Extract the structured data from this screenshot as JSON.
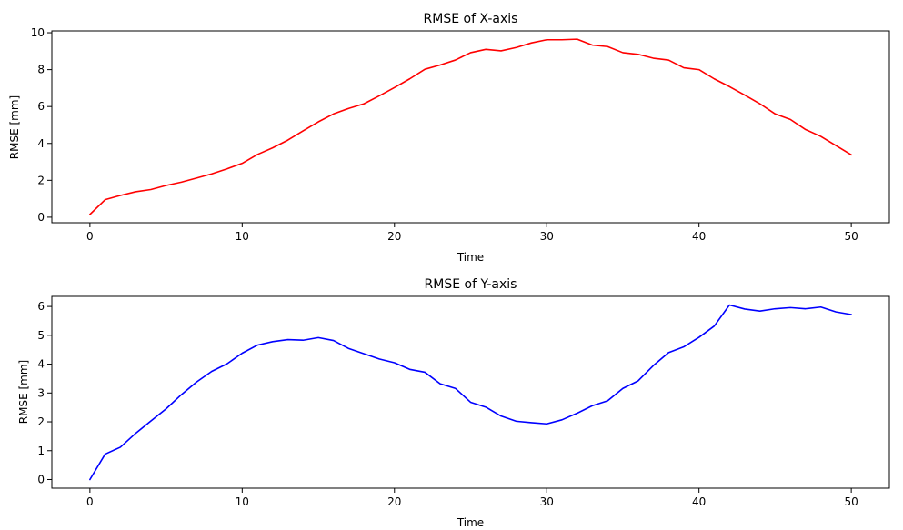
{
  "chart_data": [
    {
      "type": "line",
      "title": "RMSE of X-axis",
      "xlabel": "Time",
      "ylabel": "RMSE [mm]",
      "xlim": [
        -2.5,
        52.5
      ],
      "ylim": [
        -0.3,
        10.1
      ],
      "xticks": [
        0,
        10,
        20,
        30,
        40,
        50
      ],
      "yticks": [
        0,
        2,
        4,
        6,
        8,
        10
      ],
      "grid": false,
      "series": [
        {
          "name": "RMSE X",
          "color": "#ff0000",
          "x": [
            0,
            1,
            2,
            3,
            4,
            5,
            6,
            7,
            8,
            9,
            10,
            11,
            12,
            13,
            14,
            15,
            16,
            17,
            18,
            19,
            20,
            21,
            22,
            23,
            24,
            25,
            26,
            27,
            28,
            29,
            30,
            31,
            32,
            33,
            34,
            35,
            36,
            37,
            38,
            39,
            40,
            41,
            42,
            43,
            44,
            45,
            46,
            47,
            48,
            49,
            50
          ],
          "values": [
            0.15,
            0.95,
            1.18,
            1.38,
            1.5,
            1.72,
            1.9,
            2.12,
            2.35,
            2.62,
            2.92,
            3.4,
            3.76,
            4.18,
            4.68,
            5.17,
            5.6,
            5.9,
            6.15,
            6.58,
            7.03,
            7.5,
            8.02,
            8.25,
            8.52,
            8.92,
            9.1,
            9.02,
            9.2,
            9.45,
            9.62,
            9.62,
            9.65,
            9.33,
            9.25,
            8.92,
            8.83,
            8.62,
            8.52,
            8.1,
            8.0,
            7.5,
            7.08,
            6.62,
            6.15,
            5.6,
            5.3,
            4.75,
            4.38,
            3.88,
            3.38
          ]
        }
      ]
    },
    {
      "type": "line",
      "title": "RMSE of Y-axis",
      "xlabel": "Time",
      "ylabel": "RMSE [mm]",
      "xlim": [
        -2.5,
        52.5
      ],
      "ylim": [
        -0.3,
        6.35
      ],
      "xticks": [
        0,
        10,
        20,
        30,
        40,
        50
      ],
      "yticks": [
        0,
        1,
        2,
        3,
        4,
        5,
        6
      ],
      "grid": false,
      "series": [
        {
          "name": "RMSE Y",
          "color": "#0000ff",
          "x": [
            0,
            1,
            2,
            3,
            4,
            5,
            6,
            7,
            8,
            9,
            10,
            11,
            12,
            13,
            14,
            15,
            16,
            17,
            18,
            19,
            20,
            21,
            22,
            23,
            24,
            25,
            26,
            27,
            28,
            29,
            30,
            31,
            32,
            33,
            34,
            35,
            36,
            37,
            38,
            39,
            40,
            41,
            42,
            43,
            44,
            45,
            46,
            47,
            48,
            49,
            50
          ],
          "values": [
            0.0,
            0.88,
            1.12,
            1.6,
            2.03,
            2.45,
            2.94,
            3.38,
            3.75,
            4.01,
            4.38,
            4.66,
            4.78,
            4.85,
            4.83,
            4.92,
            4.82,
            4.54,
            4.36,
            4.18,
            4.05,
            3.82,
            3.72,
            3.32,
            3.16,
            2.68,
            2.51,
            2.2,
            2.02,
            1.97,
            1.93,
            2.07,
            2.3,
            2.56,
            2.73,
            3.16,
            3.42,
            3.95,
            4.4,
            4.6,
            4.93,
            5.32,
            6.05,
            5.91,
            5.84,
            5.92,
            5.96,
            5.92,
            5.98,
            5.81,
            5.72
          ]
        }
      ]
    }
  ]
}
